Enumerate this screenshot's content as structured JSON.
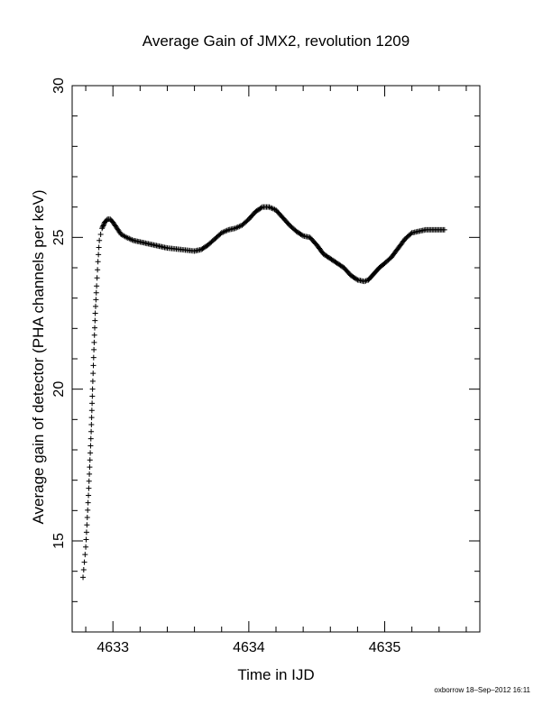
{
  "chart_data": {
    "type": "scatter",
    "title": "Average Gain of JMX2, revolution 1209",
    "xlabel": "Time in IJD",
    "ylabel": "Average gain of detector (PHA channels per keV)",
    "xlim": [
      4632.7,
      4635.7
    ],
    "ylim": [
      12,
      30
    ],
    "x_ticks": [
      4633,
      4634,
      4635
    ],
    "y_ticks": [
      15,
      20,
      25,
      30
    ],
    "x_tick_labels": [
      "4633",
      "4634",
      "4635"
    ],
    "y_tick_labels": [
      "15",
      "20",
      "25",
      "30"
    ],
    "marker": "plus",
    "grid": false,
    "series": [
      {
        "x": [
          4632.78,
          4632.8,
          4632.82,
          4632.84,
          4632.85,
          4632.86,
          4632.87,
          4632.88,
          4632.89,
          4632.9,
          4632.92,
          4632.94,
          4632.96,
          4632.98,
          4633.0,
          4633.03,
          4633.06,
          4633.1,
          4633.15,
          4633.2,
          4633.3,
          4633.4,
          4633.5,
          4633.6,
          4633.65,
          4633.7,
          4633.75,
          4633.8,
          4633.85,
          4633.9,
          4633.95,
          4634.0,
          4634.05,
          4634.1,
          4634.15,
          4634.2,
          4634.25,
          4634.3,
          4634.35,
          4634.4,
          4634.45,
          4634.5,
          4634.55,
          4634.6,
          4634.65,
          4634.7,
          4634.75,
          4634.8,
          4634.85,
          4634.88,
          4634.92,
          4634.96,
          4635.0,
          4635.05,
          4635.1,
          4635.15,
          4635.2,
          4635.25,
          4635.3,
          4635.35,
          4635.4,
          4635.44
        ],
        "y": [
          13.8,
          14.8,
          16.5,
          18.6,
          20.0,
          21.3,
          22.5,
          23.4,
          24.2,
          24.9,
          25.3,
          25.5,
          25.6,
          25.6,
          25.5,
          25.3,
          25.1,
          25.0,
          24.9,
          24.85,
          24.75,
          24.65,
          24.6,
          24.55,
          24.6,
          24.75,
          24.95,
          25.15,
          25.25,
          25.3,
          25.4,
          25.6,
          25.85,
          26.0,
          26.0,
          25.9,
          25.65,
          25.4,
          25.2,
          25.05,
          25.0,
          24.75,
          24.45,
          24.3,
          24.15,
          24.0,
          23.75,
          23.6,
          23.55,
          23.6,
          23.8,
          24.0,
          24.15,
          24.35,
          24.65,
          24.95,
          25.15,
          25.2,
          25.25,
          25.25,
          25.25,
          25.25
        ]
      }
    ]
  },
  "footer": "oxborrow 18–Sep–2012 16:11"
}
